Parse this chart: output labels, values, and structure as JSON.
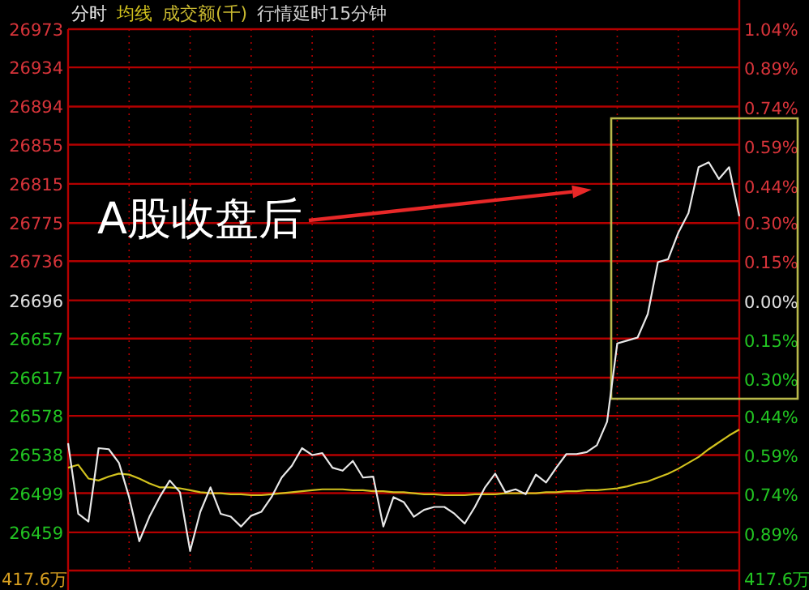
{
  "chart_data": {
    "type": "line",
    "categories": [
      null,
      null,
      null,
      null,
      null,
      null,
      null,
      null,
      null,
      null,
      null,
      null,
      null,
      null,
      null,
      null,
      null,
      null,
      null,
      null,
      null,
      null,
      null,
      null,
      null,
      null,
      null,
      null,
      null,
      null,
      null,
      null,
      null,
      null,
      null,
      null,
      null,
      null,
      null,
      null,
      null,
      null,
      null,
      null,
      null,
      null,
      null,
      null,
      null,
      null,
      null,
      null,
      null,
      null,
      null,
      null,
      null,
      null,
      null,
      null,
      null,
      null,
      null,
      null,
      null,
      null,
      null
    ],
    "series": [
      {
        "name": "分时",
        "color": "#e8e8e8",
        "values": [
          26550,
          26478,
          26470,
          26545,
          26544,
          26530,
          26495,
          26450,
          26475,
          26495,
          26512,
          26500,
          26440,
          26480,
          26505,
          26478,
          26475,
          26465,
          26476,
          26480,
          26495,
          26515,
          26527,
          26545,
          26538,
          26540,
          26525,
          26522,
          26532,
          26515,
          26516,
          26465,
          26495,
          26490,
          26475,
          26482,
          26485,
          26485,
          26478,
          26468,
          26485,
          26505,
          26519,
          26500,
          26503,
          26498,
          26518,
          26510,
          26525,
          26539,
          26539,
          26541,
          26548,
          26572,
          26652,
          26655,
          26658,
          26682,
          26735,
          26738,
          26765,
          26785,
          26832,
          26837,
          26820,
          26832,
          26782
        ]
      },
      {
        "name": "均线",
        "color": "#d2c21e",
        "values": [
          26525,
          26528,
          26514,
          26512,
          26516,
          26519,
          26518,
          26514,
          26509,
          26505,
          26505,
          26504,
          26502,
          26500,
          26499,
          26499,
          26498,
          26498,
          26497,
          26497,
          26498,
          26499,
          26500,
          26501,
          26502,
          26503,
          26503,
          26503,
          26502,
          26502,
          26501,
          26501,
          26500,
          26500,
          26499,
          26498,
          26498,
          26497,
          26497,
          26497,
          26498,
          26498,
          26498,
          26499,
          26499,
          26499,
          26499,
          26500,
          26500,
          26501,
          26501,
          26502,
          26502,
          26503,
          26504,
          26506,
          26509,
          26511,
          26515,
          26519,
          26524,
          26530,
          26536,
          26544,
          26551,
          26558,
          26564
        ]
      }
    ],
    "ylim": [
      26420,
      26973
    ],
    "yticks": [
      26973,
      26934,
      26894,
      26855,
      26815,
      26775,
      26736,
      26696,
      26657,
      26617,
      26578,
      26538,
      26499,
      26459
    ],
    "y2lim": [
      -1.03,
      1.04
    ],
    "y2ticks": [
      {
        "value": 1.04,
        "label": "1.04%"
      },
      {
        "value": 0.89,
        "label": "0.89%"
      },
      {
        "value": 0.74,
        "label": "0.74%"
      },
      {
        "value": 0.59,
        "label": "0.59%"
      },
      {
        "value": 0.44,
        "label": "0.44%"
      },
      {
        "value": 0.3,
        "label": "0.30%"
      },
      {
        "value": 0.15,
        "label": "0.15%"
      },
      {
        "value": 0,
        "label": "0.00%"
      },
      {
        "value": -0.15,
        "label": "0.15%"
      },
      {
        "value": -0.3,
        "label": "0.30%"
      },
      {
        "value": -0.44,
        "label": "0.44%"
      },
      {
        "value": -0.59,
        "label": "0.59%"
      },
      {
        "value": -0.74,
        "label": "0.74%"
      },
      {
        "value": -0.89,
        "label": "0.89%"
      }
    ],
    "grid": true,
    "line_style": "solid",
    "annotations": [
      "成交额(千)",
      "行情延时15分钟",
      "417.6万",
      "417.6万",
      "A股收盘后"
    ]
  }
}
